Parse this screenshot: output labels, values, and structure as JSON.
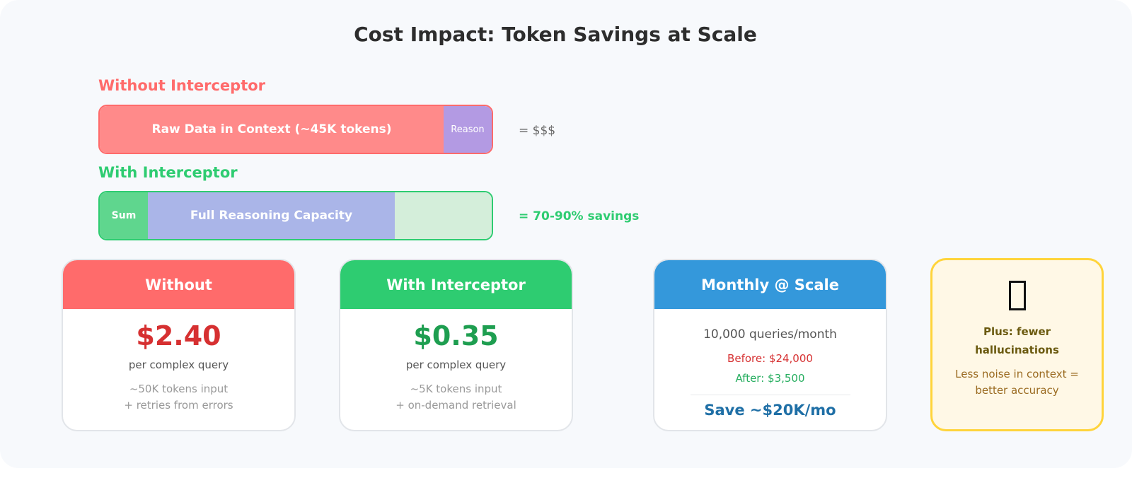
{
  "title": "Cost Impact: Token Savings at Scale",
  "without_bar": {
    "label": "Without Interceptor",
    "segments": [
      {
        "text": "Raw Data in Context (~45K tokens)",
        "color": "#ff8a8a"
      },
      {
        "text": "Reason",
        "color": "#b39ae3"
      }
    ],
    "result": "= $$$"
  },
  "with_bar": {
    "label": "With Interceptor",
    "segments": [
      {
        "text": "Sum",
        "color": "#5fd68e"
      },
      {
        "text": "Full Reasoning Capacity",
        "color": "#aab5e8"
      },
      {
        "text": "",
        "color": "#d4eeda"
      }
    ],
    "result": "= 70-90% savings"
  },
  "cards": [
    {
      "header": "Without",
      "price": "$2.40",
      "per": "per complex query",
      "note1": "~50K tokens input",
      "note2": "+ retries from errors",
      "header_color": "#ff6b6b",
      "price_color": "#d63031"
    },
    {
      "header": "With Interceptor",
      "price": "$0.35",
      "per": "per complex query",
      "note1": "~5K tokens input",
      "note2": "+ on-demand retrieval",
      "header_color": "#2ecc71",
      "price_color": "#1e9e50"
    }
  ],
  "monthly": {
    "header": "Monthly @ Scale",
    "queries": "10,000 queries/month",
    "before": "Before: $24,000",
    "after": "After: $3,500",
    "save": "Save ~$20K/mo",
    "header_color": "#3498db"
  },
  "tip": {
    "icon": "missing-glyph",
    "heading": "Plus: fewer hallucinations",
    "body": "Less noise in context = better accuracy"
  }
}
